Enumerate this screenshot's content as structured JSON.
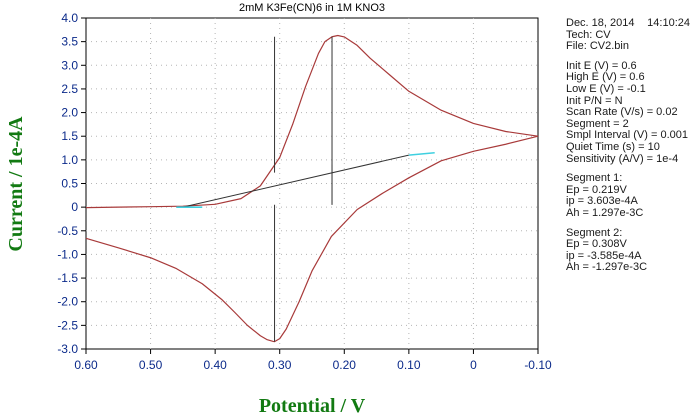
{
  "chart_data": {
    "type": "line",
    "title": "2mM K3Fe(CN)6 in 1M KNO3",
    "xlabel": "Potential / V",
    "ylabel": "Current / 1e-4A",
    "xlim": [
      0.6,
      -0.1
    ],
    "ylim": [
      -3.0,
      4.0
    ],
    "x_reversed": true,
    "grid": true,
    "x_ticks": [
      "0.60",
      "0.50",
      "0.40",
      "0.30",
      "0.20",
      "0.10",
      "0",
      "-0.10"
    ],
    "y_ticks": [
      "-3.0",
      "-2.5",
      "-2.0",
      "-1.5",
      "-1.0",
      "-0.5",
      "0",
      "0.5",
      "1.0",
      "1.5",
      "2.0",
      "2.5",
      "3.0",
      "3.5",
      "4.0"
    ],
    "series": [
      {
        "color": "#a83a3a",
        "x": [
          0.6,
          0.55,
          0.5,
          0.46,
          0.42,
          0.39,
          0.37,
          0.35,
          0.33,
          0.32,
          0.31,
          0.308,
          0.3,
          0.29,
          0.27,
          0.25,
          0.22,
          0.18,
          0.14,
          0.1,
          0.05,
          0.0,
          -0.05,
          -0.1
        ],
        "y": [
          -0.66,
          -0.86,
          -1.07,
          -1.3,
          -1.62,
          -1.95,
          -2.22,
          -2.5,
          -2.72,
          -2.8,
          -2.84,
          -2.845,
          -2.78,
          -2.58,
          -2.0,
          -1.35,
          -0.62,
          -0.05,
          0.3,
          0.62,
          0.98,
          1.18,
          1.33,
          1.5
        ]
      },
      {
        "color": "#a83a3a",
        "x": [
          -0.1,
          -0.05,
          0.0,
          0.05,
          0.1,
          0.13,
          0.16,
          0.18,
          0.2,
          0.21,
          0.219,
          0.23,
          0.24,
          0.26,
          0.28,
          0.3,
          0.33,
          0.36,
          0.4,
          0.45,
          0.5,
          0.55,
          0.6
        ],
        "y": [
          1.5,
          1.6,
          1.77,
          2.05,
          2.45,
          2.8,
          3.15,
          3.42,
          3.6,
          3.63,
          3.603,
          3.5,
          3.25,
          2.55,
          1.75,
          1.05,
          0.45,
          0.18,
          0.06,
          0.02,
          0.01,
          0.0,
          -0.01
        ]
      },
      {
        "color": "#333333",
        "x": [
          0.219,
          0.219,
          0.308,
          0.308,
          0.219,
          0.219,
          0.308,
          0.308,
          0.45,
          0.1
        ],
        "y": [
          0.05,
          3.603,
          3.603,
          0.73,
          0.9,
          0.05,
          0.05,
          -2.845,
          0.0,
          1.1
        ]
      }
    ],
    "cyan_segments": [
      {
        "x": [
          0.46,
          0.42
        ],
        "y": [
          0.0,
          0.0
        ]
      },
      {
        "x": [
          0.1,
          0.06
        ],
        "y": [
          1.1,
          1.15
        ]
      }
    ]
  },
  "info_panel": {
    "date": "Dec. 18, 2014",
    "time": "14:10:24",
    "tech": "Tech: CV",
    "file": "File: CV2.bin",
    "params": [
      "Init E (V) = 0.6",
      "High E (V) = 0.6",
      "Low E (V) = -0.1",
      "Init P/N = N",
      "Scan Rate (V/s) = 0.02",
      "Segment = 2",
      "Smpl Interval (V) = 0.001",
      "Quiet Time (s) = 10",
      "Sensitivity (A/V) = 1e-4"
    ],
    "segment1": [
      "Segment 1:",
      "Ep = 0.219V",
      "ip = 3.603e-4A",
      "Ah = 1.297e-3C"
    ],
    "segment2": [
      "Segment 2:",
      "Ep = 0.308V",
      "ip = -3.585e-4A",
      "Ah = -1.297e-3C"
    ]
  }
}
